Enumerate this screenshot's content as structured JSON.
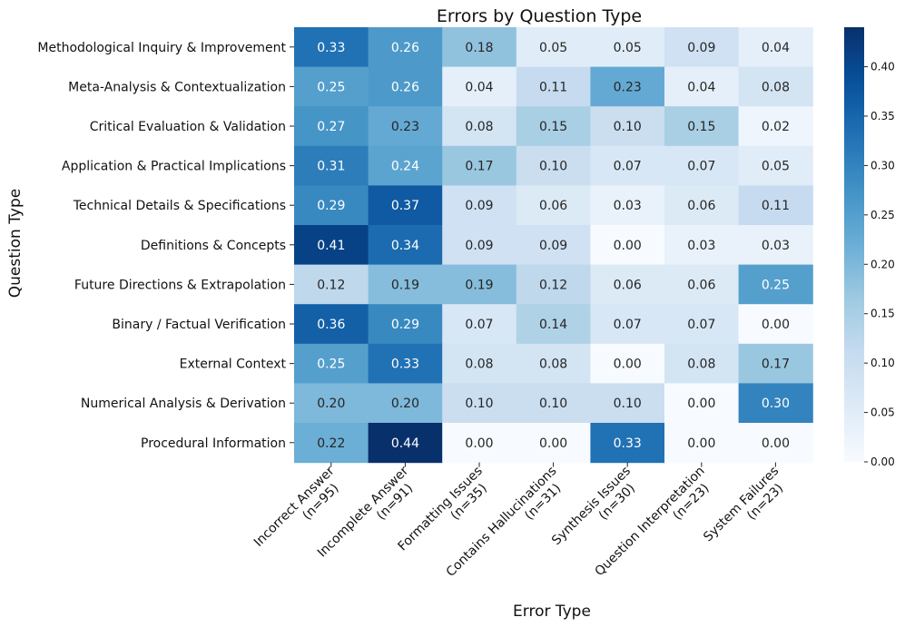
{
  "chart_data": {
    "type": "heatmap",
    "title": "Errors by Question Type",
    "xlabel": "Error Type",
    "ylabel": "Question Type",
    "x_categories": [
      {
        "line1": "Incorrect Answer",
        "line2": "(n=95)"
      },
      {
        "line1": "Incomplete Answer",
        "line2": "(n=91)"
      },
      {
        "line1": "Formatting Issues",
        "line2": "(n=35)"
      },
      {
        "line1": "Contains Hallucinations",
        "line2": "(n=31)"
      },
      {
        "line1": "Synthesis Issues",
        "line2": "(n=30)"
      },
      {
        "line1": "Question Interpretation",
        "line2": "(n=23)"
      },
      {
        "line1": "System Failures",
        "line2": "(n=23)"
      }
    ],
    "y_categories": [
      "Methodological Inquiry & Improvement",
      "Meta-Analysis & Contextualization",
      "Critical Evaluation & Validation",
      "Application & Practical Implications",
      "Technical Details & Specifications",
      "Definitions & Concepts",
      "Future Directions & Extrapolation",
      "Binary / Factual Verification",
      "External Context",
      "Numerical Analysis & Derivation",
      "Procedural Information"
    ],
    "values": [
      [
        0.33,
        0.26,
        0.18,
        0.05,
        0.05,
        0.09,
        0.04
      ],
      [
        0.25,
        0.26,
        0.04,
        0.11,
        0.23,
        0.04,
        0.08
      ],
      [
        0.27,
        0.23,
        0.08,
        0.15,
        0.1,
        0.15,
        0.02
      ],
      [
        0.31,
        0.24,
        0.17,
        0.1,
        0.07,
        0.07,
        0.05
      ],
      [
        0.29,
        0.37,
        0.09,
        0.06,
        0.03,
        0.06,
        0.11
      ],
      [
        0.41,
        0.34,
        0.09,
        0.09,
        0.0,
        0.03,
        0.03
      ],
      [
        0.12,
        0.19,
        0.19,
        0.12,
        0.06,
        0.06,
        0.25
      ],
      [
        0.36,
        0.29,
        0.07,
        0.14,
        0.07,
        0.07,
        0.0
      ],
      [
        0.25,
        0.33,
        0.08,
        0.08,
        0.0,
        0.08,
        0.17
      ],
      [
        0.2,
        0.2,
        0.1,
        0.1,
        0.1,
        0.0,
        0.3
      ],
      [
        0.22,
        0.44,
        0.0,
        0.0,
        0.33,
        0.0,
        0.0
      ]
    ],
    "colormap": "Blues",
    "value_range": [
      0,
      0.44
    ],
    "colorbar_ticks": [
      0.0,
      0.05,
      0.1,
      0.15,
      0.2,
      0.25,
      0.3,
      0.35,
      0.4
    ],
    "value_format": "2 decimals"
  }
}
